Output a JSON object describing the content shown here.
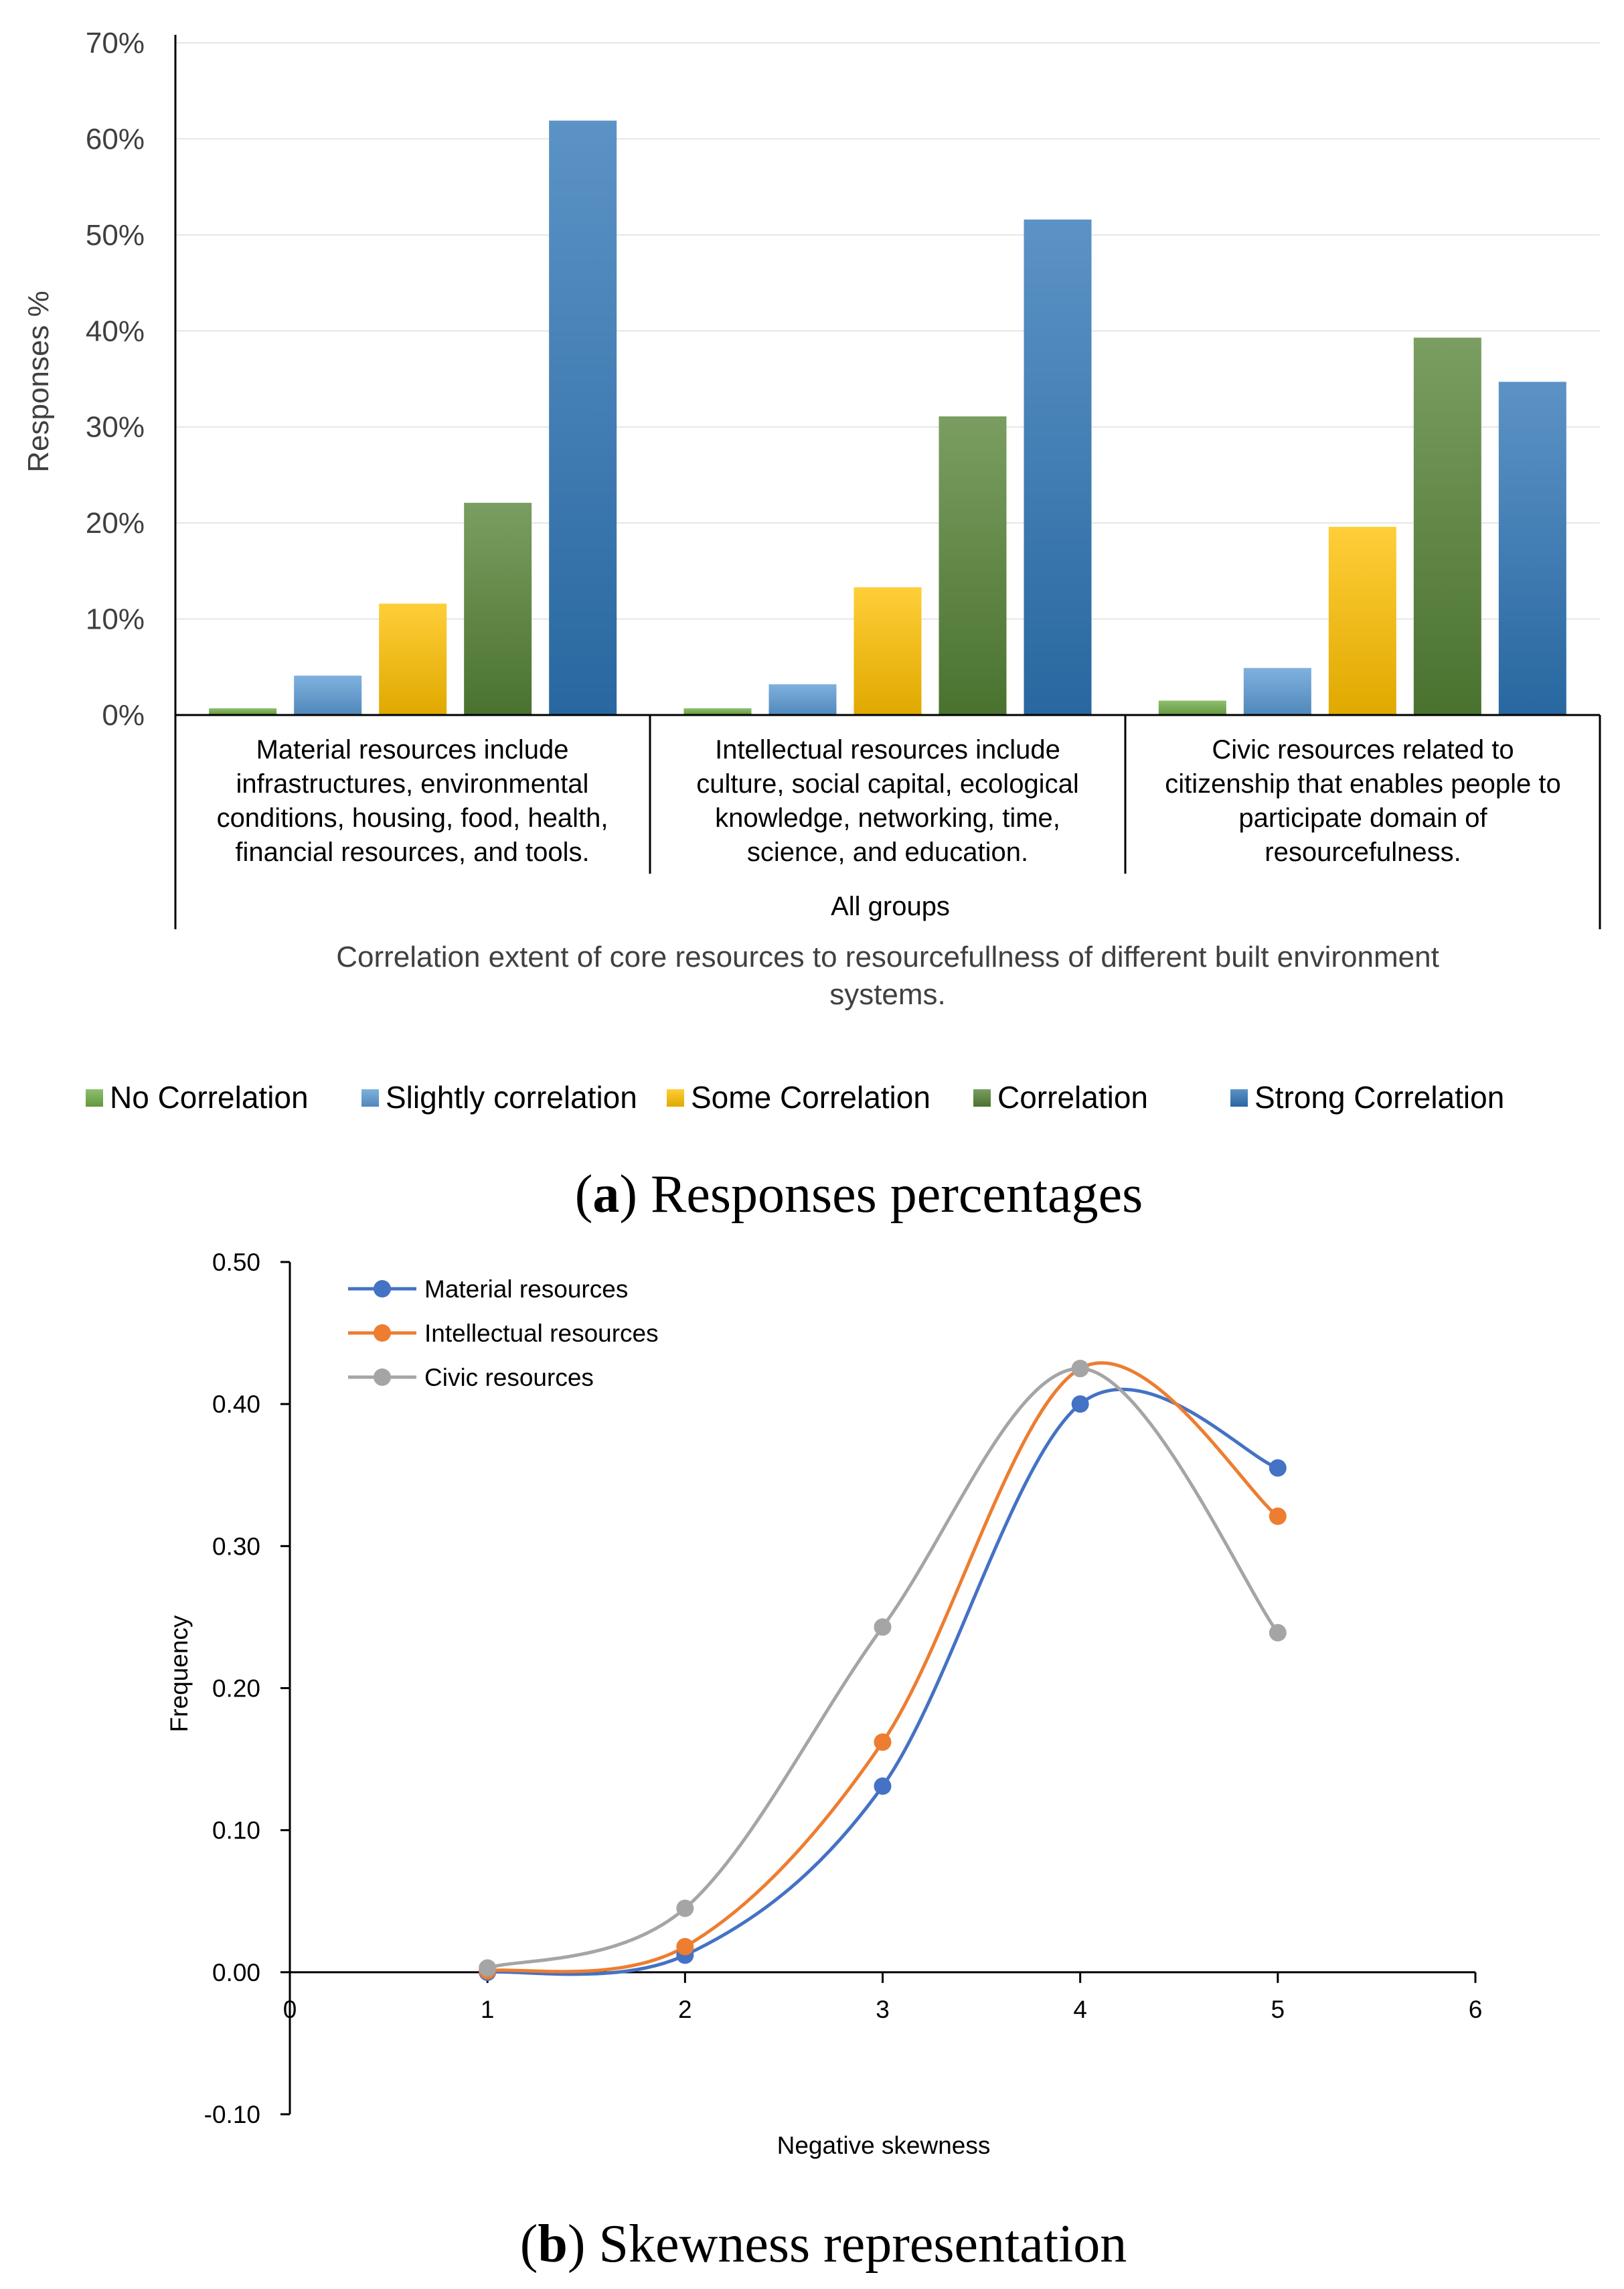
{
  "chart_data": [
    {
      "type": "bar",
      "title": "",
      "ylabel": "Responses %",
      "xlabel": "Correlation extent of core resources to resourcefullness of different built environment systems.",
      "group_label": "All groups",
      "ylim": [
        0,
        70
      ],
      "yticks": [
        "0%",
        "10%",
        "20%",
        "30%",
        "40%",
        "50%",
        "60%",
        "70%"
      ],
      "categories": [
        [
          "Material resources include",
          "infrastructures, environmental",
          "conditions, housing, food, health,",
          "financial resources, and tools."
        ],
        [
          "Intellectual resources include",
          "culture, social capital, ecological",
          "knowledge, networking, time,",
          "science, and education."
        ],
        [
          "Civic resources related to",
          "citizenship that enables people to",
          "participate domain of",
          "resourcefulness."
        ]
      ],
      "series": [
        {
          "name": "No Correlation",
          "color": "#70AD47",
          "values": [
            0.7,
            0.7,
            1.5
          ]
        },
        {
          "name": "Slightly correlation",
          "color": "#5B9BD5",
          "values": [
            4.1,
            3.2,
            4.9
          ]
        },
        {
          "name": "Some Correlation",
          "color": "#FFC000",
          "values": [
            11.6,
            13.3,
            19.6
          ]
        },
        {
          "name": "Correlation",
          "color": "#548235",
          "values": [
            22.1,
            31.1,
            39.3
          ]
        },
        {
          "name": "Strong Correlation",
          "color": "#2E75B6",
          "values": [
            61.9,
            51.6,
            34.7
          ]
        }
      ],
      "legend": "bottom",
      "caption_bold": "a",
      "caption_rest": ") Responses percentages"
    },
    {
      "type": "line",
      "title": "",
      "xlabel": "Negative skewness",
      "ylabel": "Frequency",
      "xlim": [
        0,
        6
      ],
      "ylim": [
        -0.1,
        0.5
      ],
      "xticks": [
        "0",
        "1",
        "2",
        "3",
        "4",
        "5",
        "6"
      ],
      "yticks": [
        "-0.10",
        "0.00",
        "0.10",
        "0.20",
        "0.30",
        "0.40",
        "0.50"
      ],
      "x": [
        1,
        2,
        3,
        4,
        5
      ],
      "series": [
        {
          "name": "Material resources",
          "color": "#4472C4",
          "values": [
            0.0,
            0.012,
            0.131,
            0.4,
            0.355
          ]
        },
        {
          "name": "Intellectual resources",
          "color": "#ED7D31",
          "values": [
            0.001,
            0.018,
            0.162,
            0.425,
            0.321
          ]
        },
        {
          "name": "Civic resources",
          "color": "#A5A5A5",
          "values": [
            0.003,
            0.045,
            0.243,
            0.425,
            0.239
          ]
        }
      ],
      "legend": "top-left",
      "caption_bold": "b",
      "caption_rest": ") Skewness representation"
    }
  ]
}
